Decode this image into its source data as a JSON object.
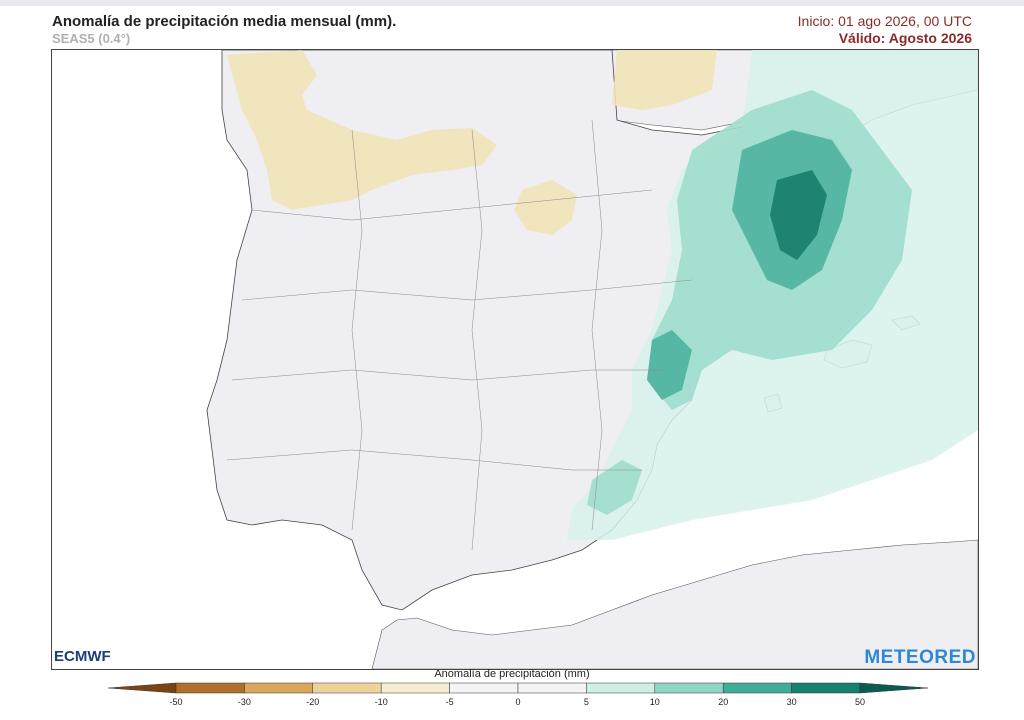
{
  "header": {
    "title": "Anomalía de precipitación media mensual (mm).",
    "subtitle": "SEAS5 (0.4°)",
    "init": "Inicio: 01 ago 2026, 00 UTC",
    "valid": "Válido: Agosto 2026"
  },
  "logos": {
    "left": "ECMWF",
    "right": "METEORED"
  },
  "colorbar": {
    "title": "Anomalía de precipitación (mm)",
    "ticks": [
      "-50",
      "-30",
      "-20",
      "-10",
      "-5",
      "0",
      "5",
      "10",
      "20",
      "30",
      "50"
    ],
    "colors": [
      "#7a4512",
      "#b06f2a",
      "#d9a65b",
      "#eed49a",
      "#f6ecce",
      "#f4f4f4",
      "#f4f4f4",
      "#cfeee6",
      "#8fd6c3",
      "#3fae98",
      "#17806f",
      "#0b5c4e"
    ]
  },
  "map": {
    "land_color": "#eeeef3",
    "sea_color": "#ffffff",
    "dry_color": "#f1e3b8",
    "wet_colors": [
      "#d7f1eb",
      "#9fddcd",
      "#4db39e",
      "#1a7d6c"
    ]
  }
}
